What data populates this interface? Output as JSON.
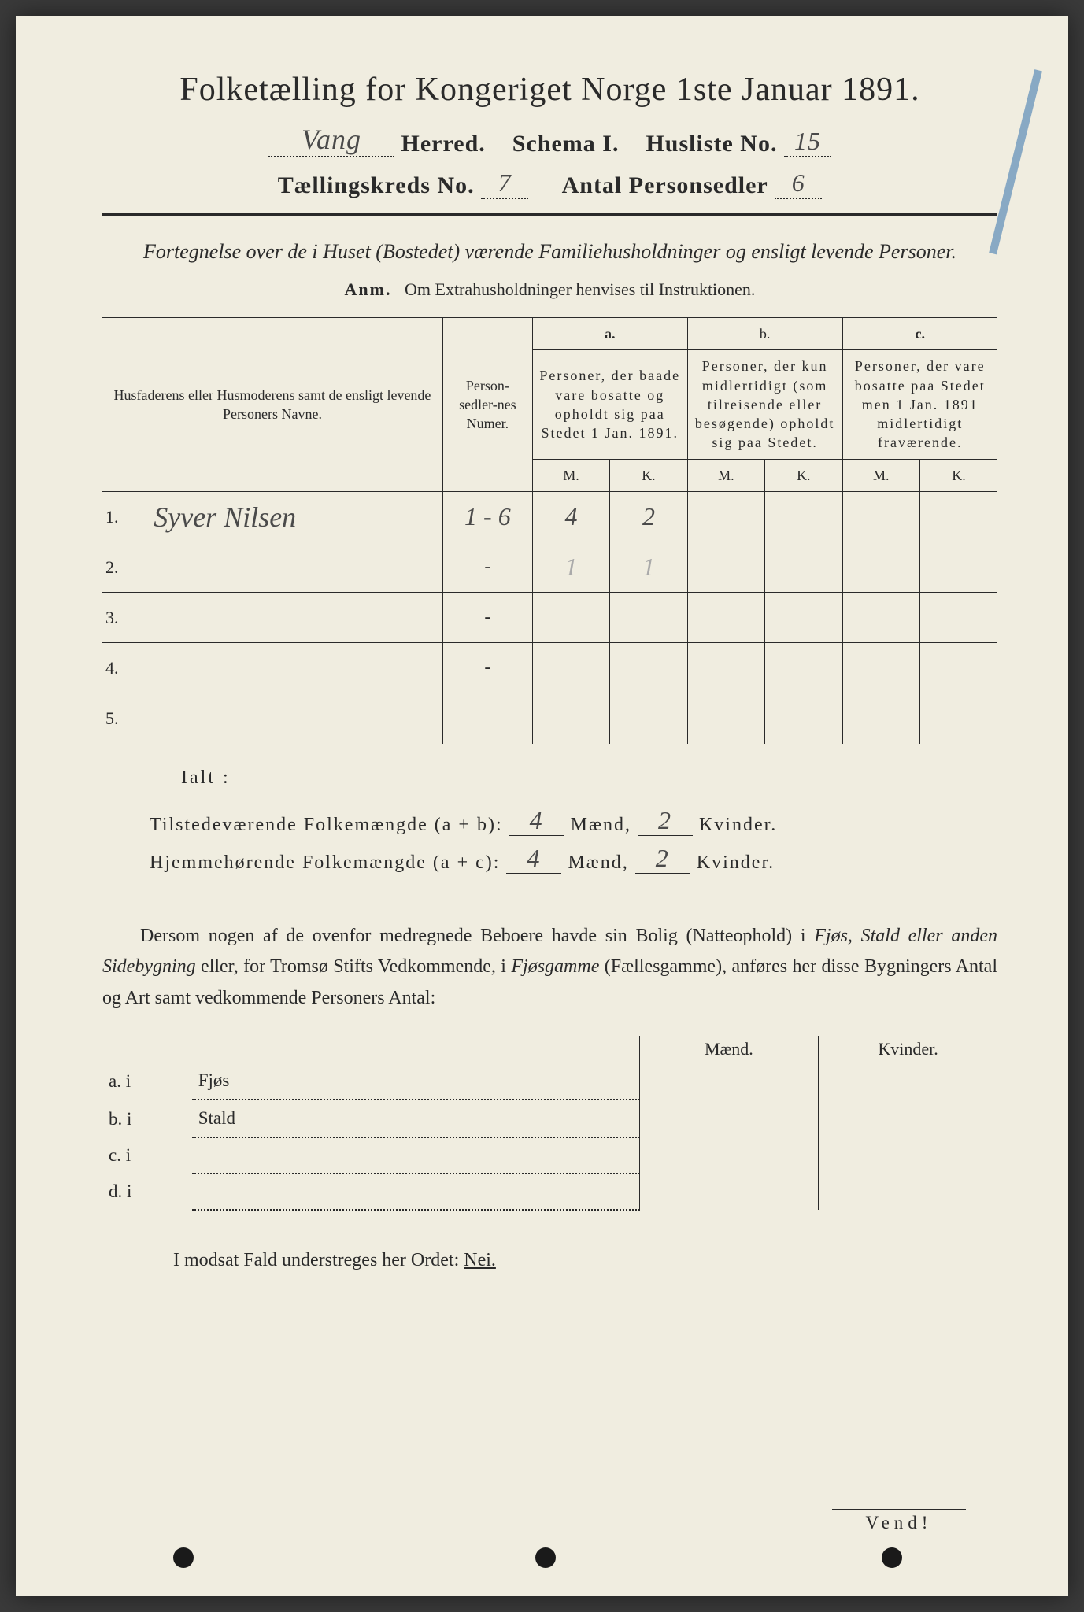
{
  "colors": {
    "paper": "#f0ede0",
    "ink": "#2a2a2a",
    "handwriting": "#4a4a4a",
    "faint_pencil": "#aaaaaa",
    "blue_pencil": "#5b8bb8",
    "background": "#3a3a3a"
  },
  "title": "Folketælling for Kongeriget Norge 1ste Januar 1891.",
  "header": {
    "herred_value": "Vang",
    "herred_label": "Herred.",
    "schema_label": "Schema I.",
    "husliste_label": "Husliste No.",
    "husliste_value": "15",
    "kreds_label": "Tællingskreds No.",
    "kreds_value": "7",
    "personsedler_label": "Antal Personsedler",
    "personsedler_value": "6"
  },
  "subtitle": "Fortegnelse over de i Huset (Bostedet) værende Familiehusholdninger og ensligt levende Personer.",
  "anm_label": "Anm.",
  "anm_text": "Om Extrahusholdninger henvises til Instruktionen.",
  "table": {
    "col_name": "Husfaderens eller Husmoderens samt de ensligt levende Personers Navne.",
    "col_num": "Person-sedler-nes Numer.",
    "col_a_label": "a.",
    "col_a": "Personer, der baade vare bosatte og opholdt sig paa Stedet 1 Jan. 1891.",
    "col_b_label": "b.",
    "col_b": "Personer, der kun midlertidigt (som tilreisende eller besøgende) opholdt sig paa Stedet.",
    "col_c_label": "c.",
    "col_c": "Personer, der vare bosatte paa Stedet men 1 Jan. 1891 midlertidigt fraværende.",
    "m": "M.",
    "k": "K.",
    "rows": [
      {
        "n": "1.",
        "name": "Syver Nilsen",
        "num": "1 - 6",
        "am": "4",
        "ak": "2",
        "bm": "",
        "bk": "",
        "cm": "",
        "ck": ""
      },
      {
        "n": "2.",
        "name": "",
        "num": "-",
        "am_faint": "1",
        "ak_faint": "1",
        "bm": "",
        "bk": "",
        "cm": "",
        "ck": ""
      },
      {
        "n": "3.",
        "name": "",
        "num": "-",
        "am": "",
        "ak": "",
        "bm": "",
        "bk": "",
        "cm": "",
        "ck": ""
      },
      {
        "n": "4.",
        "name": "",
        "num": "-",
        "am": "",
        "ak": "",
        "bm": "",
        "bk": "",
        "cm": "",
        "ck": ""
      },
      {
        "n": "5.",
        "name": "",
        "num": "",
        "am": "",
        "ak": "",
        "bm": "",
        "bk": "",
        "cm": "",
        "ck": ""
      }
    ]
  },
  "ialt": "Ialt :",
  "sums": {
    "line1_label": "Tilstedeværende Folkemængde (a + b):",
    "line2_label": "Hjemmehørende Folkemængde (a + c):",
    "maend": "Mænd,",
    "kvinder": "Kvinder.",
    "l1_m": "4",
    "l1_k": "2",
    "l2_m": "4",
    "l2_k": "2"
  },
  "para": {
    "p1": "Dersom nogen af de ovenfor medregnede Beboere havde sin Bolig (Natteophold) i ",
    "i1": "Fjøs, Stald eller anden Sidebygning",
    "p2": " eller, for Tromsø Stifts Vedkommende, i ",
    "i2": "Fjøsgamme",
    "p3": " (Fællesgamme), anføres her disse Bygningers Antal og Art samt vedkommende Personers Antal:"
  },
  "side_table": {
    "maend": "Mænd.",
    "kvinder": "Kvinder.",
    "rows": [
      {
        "lbl": "a.  i",
        "txt": "Fjøs"
      },
      {
        "lbl": "b.  i",
        "txt": "Stald"
      },
      {
        "lbl": "c.  i",
        "txt": ""
      },
      {
        "lbl": "d.  i",
        "txt": ""
      }
    ]
  },
  "modsat": "I modsat Fald understreges her Ordet: ",
  "nei": "Nei.",
  "vend": "Vend!"
}
